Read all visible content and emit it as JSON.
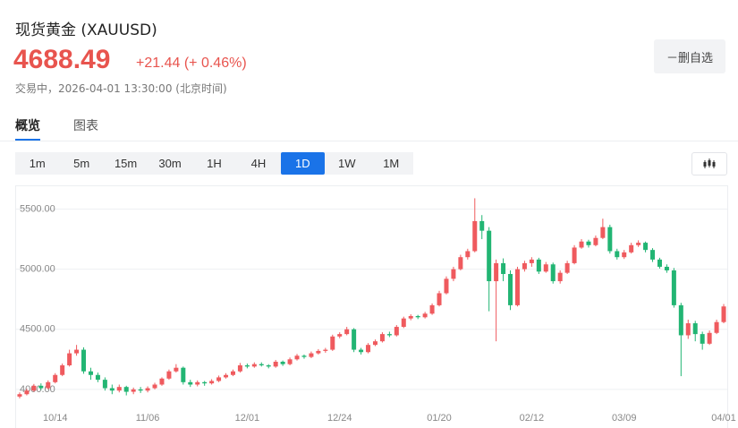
{
  "header": {
    "title": "现货黄金 (XAUUSD)",
    "price": "4688.49",
    "change": "+21.44 (+ 0.46%)",
    "status": "交易中，2026-04-01 13:30:00 (北京时间)"
  },
  "button": "－删自选",
  "tabs": [
    "概览",
    "图表"
  ],
  "periods": [
    "1m",
    "5m",
    "15m",
    "30m",
    "1H",
    "4H",
    "1D",
    "1W",
    "1M"
  ],
  "chart_data": {
    "type": "candlestick",
    "up_color": "#ef5a5e",
    "down_color": "#22b573",
    "grid": true,
    "ylim": [
      3850,
      5690
    ],
    "yticks": [
      {
        "value": 4000,
        "label": "4000.00"
      },
      {
        "value": 4500,
        "label": "4500.00"
      },
      {
        "value": 5000,
        "label": "5000.00"
      },
      {
        "value": 5500,
        "label": "5500.00"
      }
    ],
    "categories": [
      null,
      null,
      null,
      null,
      null,
      "10/14",
      null,
      null,
      null,
      null,
      null,
      null,
      null,
      null,
      null,
      null,
      null,
      null,
      "11/06",
      null,
      null,
      null,
      null,
      null,
      null,
      null,
      null,
      null,
      null,
      null,
      null,
      null,
      "12/01",
      null,
      null,
      null,
      null,
      null,
      null,
      null,
      null,
      null,
      null,
      null,
      null,
      "12/24",
      null,
      null,
      null,
      null,
      null,
      null,
      null,
      null,
      null,
      null,
      null,
      null,
      null,
      "01/20",
      null,
      null,
      null,
      null,
      null,
      null,
      null,
      null,
      null,
      null,
      null,
      null,
      "02/12",
      null,
      null,
      null,
      null,
      null,
      null,
      null,
      null,
      null,
      null,
      null,
      null,
      "03/09",
      null,
      null,
      null,
      null,
      null,
      null,
      null,
      null,
      null,
      null,
      null,
      null,
      null,
      "04/01"
    ],
    "ohlc": [
      [
        3940,
        3975,
        3925,
        3960
      ],
      [
        3960,
        4005,
        3950,
        3990
      ],
      [
        3990,
        4045,
        3980,
        4030
      ],
      [
        4030,
        4050,
        3995,
        4010
      ],
      [
        4010,
        4075,
        4000,
        4060
      ],
      [
        4060,
        4135,
        4050,
        4120
      ],
      [
        4120,
        4215,
        4110,
        4200
      ],
      [
        4200,
        4330,
        4190,
        4300
      ],
      [
        4300,
        4370,
        4280,
        4330
      ],
      [
        4330,
        4350,
        4130,
        4150
      ],
      [
        4150,
        4180,
        4080,
        4120
      ],
      [
        4120,
        4140,
        4060,
        4080
      ],
      [
        4080,
        4100,
        3990,
        4010
      ],
      [
        4010,
        4040,
        3960,
        3990
      ],
      [
        3990,
        4040,
        3975,
        4020
      ],
      [
        4020,
        4030,
        3950,
        3980
      ],
      [
        3980,
        4015,
        3960,
        4000
      ],
      [
        4000,
        4020,
        3970,
        3990
      ],
      [
        3990,
        4025,
        3975,
        4010
      ],
      [
        4010,
        4055,
        4000,
        4040
      ],
      [
        4040,
        4100,
        4030,
        4090
      ],
      [
        4090,
        4165,
        4080,
        4150
      ],
      [
        4150,
        4210,
        4140,
        4180
      ],
      [
        4180,
        4190,
        4040,
        4060
      ],
      [
        4060,
        4080,
        4020,
        4040
      ],
      [
        4040,
        4075,
        4025,
        4060
      ],
      [
        4060,
        4070,
        4030,
        4050
      ],
      [
        4050,
        4085,
        4040,
        4070
      ],
      [
        4070,
        4115,
        4060,
        4100
      ],
      [
        4100,
        4135,
        4090,
        4120
      ],
      [
        4120,
        4165,
        4110,
        4150
      ],
      [
        4150,
        4220,
        4140,
        4200
      ],
      [
        4200,
        4215,
        4175,
        4190
      ],
      [
        4190,
        4225,
        4180,
        4210
      ],
      [
        4210,
        4225,
        4190,
        4200
      ],
      [
        4200,
        4210,
        4175,
        4190
      ],
      [
        4190,
        4245,
        4180,
        4230
      ],
      [
        4230,
        4240,
        4195,
        4210
      ],
      [
        4210,
        4265,
        4200,
        4250
      ],
      [
        4250,
        4295,
        4240,
        4280
      ],
      [
        4280,
        4290,
        4255,
        4270
      ],
      [
        4270,
        4315,
        4260,
        4300
      ],
      [
        4300,
        4335,
        4290,
        4320
      ],
      [
        4320,
        4345,
        4305,
        4330
      ],
      [
        4330,
        4455,
        4320,
        4440
      ],
      [
        4440,
        4475,
        4425,
        4460
      ],
      [
        4460,
        4520,
        4450,
        4500
      ],
      [
        4500,
        4510,
        4310,
        4330
      ],
      [
        4330,
        4345,
        4290,
        4310
      ],
      [
        4310,
        4385,
        4300,
        4370
      ],
      [
        4370,
        4415,
        4360,
        4400
      ],
      [
        4400,
        4475,
        4390,
        4460
      ],
      [
        4460,
        4480,
        4435,
        4450
      ],
      [
        4450,
        4535,
        4440,
        4520
      ],
      [
        4520,
        4605,
        4510,
        4590
      ],
      [
        4590,
        4625,
        4575,
        4610
      ],
      [
        4610,
        4620,
        4585,
        4600
      ],
      [
        4600,
        4645,
        4590,
        4630
      ],
      [
        4630,
        4715,
        4620,
        4700
      ],
      [
        4700,
        4820,
        4690,
        4800
      ],
      [
        4800,
        4940,
        4790,
        4920
      ],
      [
        4920,
        5020,
        4900,
        5000
      ],
      [
        5000,
        5120,
        4990,
        5100
      ],
      [
        5100,
        5170,
        5080,
        5150
      ],
      [
        5150,
        5590,
        5140,
        5400
      ],
      [
        5400,
        5450,
        5250,
        5320
      ],
      [
        5320,
        5350,
        4650,
        4900
      ],
      [
        4900,
        5080,
        4400,
        5050
      ],
      [
        5050,
        5090,
        4900,
        4960
      ],
      [
        4960,
        4990,
        4660,
        4700
      ],
      [
        4700,
        5020,
        4690,
        5000
      ],
      [
        5000,
        5070,
        4980,
        5050
      ],
      [
        5050,
        5100,
        5020,
        5080
      ],
      [
        5080,
        5095,
        4960,
        4980
      ],
      [
        4980,
        5060,
        4970,
        5040
      ],
      [
        5040,
        5055,
        4880,
        4900
      ],
      [
        4900,
        4990,
        4880,
        4970
      ],
      [
        4970,
        5070,
        4960,
        5050
      ],
      [
        5050,
        5200,
        5040,
        5180
      ],
      [
        5180,
        5250,
        5170,
        5230
      ],
      [
        5230,
        5245,
        5180,
        5200
      ],
      [
        5200,
        5280,
        5190,
        5260
      ],
      [
        5260,
        5420,
        5250,
        5350
      ],
      [
        5350,
        5370,
        5130,
        5150
      ],
      [
        5150,
        5170,
        5080,
        5100
      ],
      [
        5100,
        5160,
        5085,
        5140
      ],
      [
        5140,
        5220,
        5130,
        5200
      ],
      [
        5200,
        5240,
        5185,
        5220
      ],
      [
        5220,
        5230,
        5140,
        5160
      ],
      [
        5160,
        5175,
        5060,
        5080
      ],
      [
        5080,
        5095,
        5005,
        5020
      ],
      [
        5020,
        5040,
        4970,
        4990
      ],
      [
        4990,
        5010,
        4680,
        4700
      ],
      [
        4700,
        4720,
        4110,
        4450
      ],
      [
        4450,
        4580,
        4420,
        4550
      ],
      [
        4550,
        4570,
        4400,
        4460
      ],
      [
        4460,
        4480,
        4330,
        4380
      ],
      [
        4380,
        4490,
        4370,
        4470
      ],
      [
        4470,
        4580,
        4460,
        4560
      ],
      [
        4560,
        4710,
        4550,
        4690
      ]
    ]
  }
}
